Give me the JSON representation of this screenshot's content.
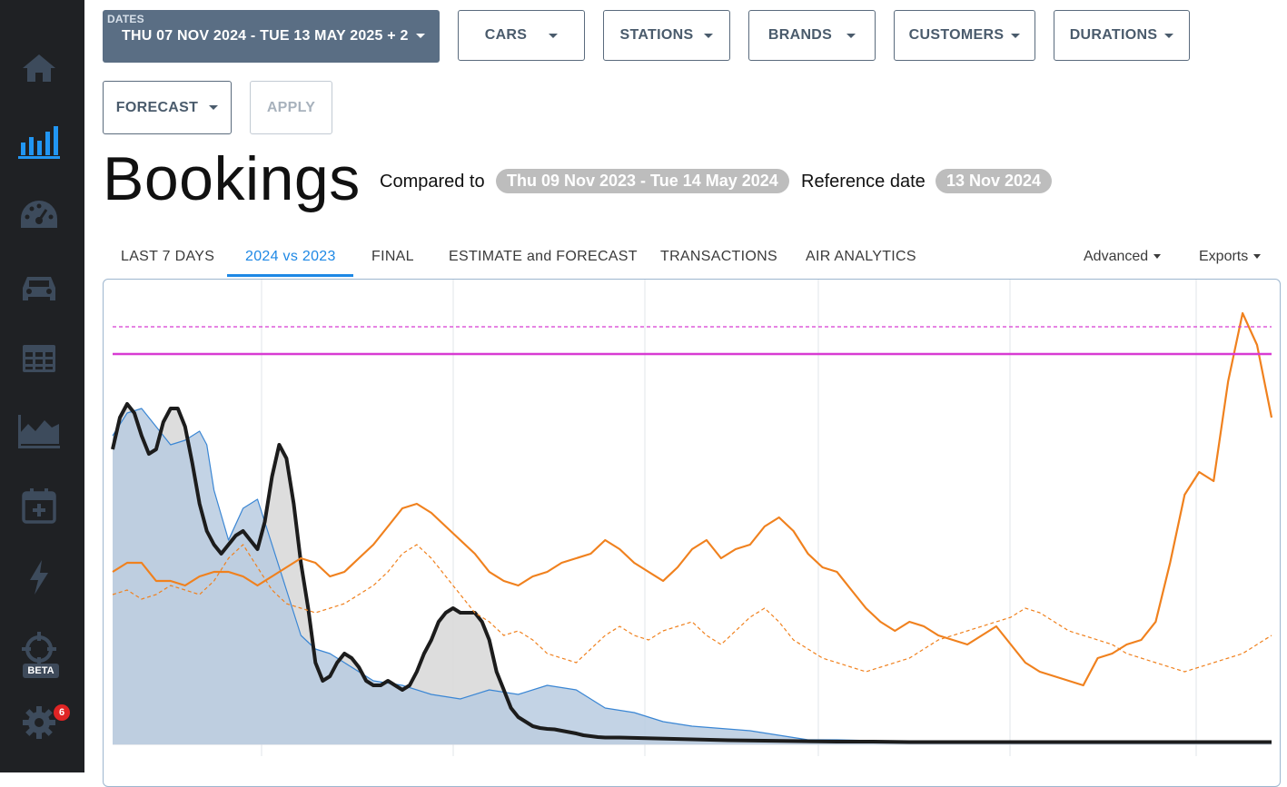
{
  "sidebar": {
    "items": [
      {
        "icon": "home-icon"
      },
      {
        "icon": "bar-chart-icon",
        "active": true
      },
      {
        "icon": "dashboard-gauge-icon"
      },
      {
        "icon": "car-icon"
      },
      {
        "icon": "table-icon"
      },
      {
        "icon": "area-chart-icon"
      },
      {
        "icon": "calendar-plus-icon"
      },
      {
        "icon": "lightning-icon"
      },
      {
        "icon": "crosshair-icon"
      },
      {
        "icon": "gear-icon"
      }
    ],
    "beta_label": "BETA",
    "notification_count": "6",
    "active_color": "#2196f3",
    "icon_color": "#3d4b5c"
  },
  "filters": {
    "dates_label": "DATES",
    "dates_value": "THU 07 NOV 2024 - TUE 13 MAY 2025 + 2",
    "cars": "CARS",
    "stations": "STATIONS",
    "brands": "BRANDS",
    "customers": "CUSTOMERS",
    "durations": "DURATIONS",
    "forecast": "FORECAST",
    "apply": "APPLY"
  },
  "page": {
    "title": "Bookings",
    "compared_to_label": "Compared to",
    "compared_to_value": "Thu 09 Nov 2023 - Tue 14 May 2024",
    "reference_label": "Reference date",
    "reference_value": "13 Nov 2024"
  },
  "tabs": [
    "LAST 7 DAYS",
    "2024 vs 2023",
    "FINAL",
    "ESTIMATE and FORECAST",
    "TRANSACTIONS",
    "AIR ANALYTICS"
  ],
  "active_tab": "2024 vs 2023",
  "menus": {
    "advanced": "Advanced",
    "exports": "Exports"
  },
  "chart_data": {
    "type": "line",
    "ylim": [
      0,
      100
    ],
    "xlim": [
      0,
      160
    ],
    "grid": true,
    "series": [
      {
        "role": "black-area",
        "color": "#1c1c1c",
        "fill": "#d9d9d9",
        "x": [
          0,
          1,
          2,
          3,
          4,
          5,
          6,
          7,
          8,
          9,
          10,
          11,
          12,
          13,
          14,
          15,
          16,
          17,
          18,
          19,
          20,
          21,
          22,
          23,
          24,
          25,
          26,
          27,
          28,
          29,
          30,
          31,
          32,
          33,
          34,
          35,
          36,
          37,
          38,
          39,
          40,
          41,
          42,
          43,
          44,
          45,
          46,
          47,
          48,
          49,
          50,
          51,
          52,
          53,
          54,
          55,
          56,
          57,
          58,
          59,
          60,
          61,
          62,
          63,
          64,
          65,
          66,
          67,
          68,
          69,
          70,
          75,
          80,
          85,
          90,
          95,
          100,
          105,
          110,
          115,
          120,
          125,
          130,
          135,
          140,
          145,
          150,
          155,
          160
        ],
        "y": [
          65,
          72,
          75,
          73,
          68,
          64,
          65,
          71,
          74,
          74,
          70,
          62,
          53,
          47,
          44,
          42,
          44,
          46,
          47,
          45,
          43,
          49,
          59,
          66,
          63,
          53,
          40,
          30,
          18,
          14,
          15,
          18,
          20,
          19,
          17,
          14,
          13,
          13,
          14,
          13,
          12,
          13,
          16,
          20,
          23,
          27,
          29,
          30,
          29,
          29,
          29,
          27,
          23,
          16,
          12,
          8,
          6,
          5,
          4,
          3.6,
          3.4,
          3.3,
          3,
          2.7,
          2.4,
          2,
          1.8,
          1.6,
          1.5,
          1.5,
          1.5,
          1.3,
          1.1,
          0.9,
          0.8,
          0.7,
          0.6,
          0.6,
          0.5,
          0.5,
          0.5,
          0.5,
          0.5,
          0.5,
          0.5,
          0.5,
          0.5,
          0.5,
          0.5
        ]
      },
      {
        "role": "blue-area",
        "color": "#3a86d4",
        "fill": "#b8cbe0",
        "x": [
          0,
          2,
          4,
          6,
          8,
          10,
          12,
          13,
          14,
          16,
          18,
          20,
          22,
          24,
          26,
          28,
          30,
          32,
          34,
          36,
          40,
          44,
          48,
          52,
          56,
          60,
          64,
          68,
          72,
          76,
          80,
          84,
          88,
          92,
          96,
          100,
          105,
          110,
          120,
          130,
          140,
          150,
          160
        ],
        "y": [
          68,
          73,
          74,
          70,
          66,
          67,
          69,
          66,
          56,
          45,
          52,
          54,
          44,
          34,
          24,
          21,
          20,
          18,
          16,
          14,
          13,
          11,
          10,
          12,
          11,
          13,
          12,
          8,
          7,
          5,
          4,
          3.5,
          3,
          2,
          1,
          1,
          0.8,
          0.6,
          0.5,
          0.5,
          0.5,
          0.5,
          0.5
        ]
      },
      {
        "role": "orange-solid",
        "color": "#f0811e",
        "x": [
          0,
          2,
          4,
          6,
          8,
          10,
          12,
          14,
          16,
          18,
          20,
          22,
          24,
          26,
          28,
          30,
          32,
          34,
          36,
          38,
          40,
          42,
          44,
          46,
          48,
          50,
          52,
          54,
          56,
          58,
          60,
          62,
          64,
          66,
          68,
          70,
          72,
          74,
          76,
          78,
          80,
          82,
          84,
          86,
          88,
          90,
          92,
          94,
          96,
          98,
          100,
          102,
          104,
          106,
          108,
          110,
          112,
          114,
          116,
          118,
          120,
          122,
          124,
          126,
          128,
          130,
          132,
          134,
          136,
          138,
          140,
          142,
          144,
          146,
          148,
          150,
          152,
          154,
          156,
          158,
          160
        ],
        "y": [
          38,
          40,
          40,
          36,
          36,
          35,
          37,
          38,
          38,
          37,
          35,
          37,
          39,
          41,
          40,
          37,
          38,
          41,
          44,
          48,
          52,
          53,
          51,
          48,
          45,
          42,
          38,
          36,
          35,
          37,
          38,
          40,
          41,
          42,
          45,
          43,
          40,
          38,
          36,
          39,
          43,
          45,
          41,
          43,
          44,
          48,
          50,
          47,
          42,
          39,
          38,
          34,
          30,
          27,
          25,
          27,
          26,
          24,
          23,
          22,
          24,
          26,
          22,
          18,
          16,
          15,
          14,
          13,
          19,
          20,
          22,
          23,
          27,
          40,
          55,
          60,
          58,
          80,
          95,
          88,
          72
        ]
      },
      {
        "role": "orange-dashed",
        "color": "#f0811e",
        "dashed": true,
        "x": [
          0,
          2,
          4,
          6,
          8,
          10,
          12,
          14,
          16,
          18,
          20,
          22,
          24,
          26,
          28,
          30,
          32,
          34,
          36,
          38,
          40,
          42,
          44,
          46,
          48,
          50,
          52,
          54,
          56,
          58,
          60,
          62,
          64,
          66,
          68,
          70,
          72,
          74,
          76,
          78,
          80,
          82,
          84,
          86,
          88,
          90,
          92,
          94,
          96,
          98,
          100,
          102,
          104,
          106,
          108,
          110,
          112,
          114,
          116,
          118,
          120,
          122,
          124,
          126,
          128,
          130,
          132,
          134,
          136,
          138,
          140,
          142,
          144,
          146,
          148,
          150,
          152,
          154,
          156,
          158,
          160
        ],
        "y": [
          33,
          34,
          32,
          33,
          35,
          34,
          33,
          36,
          41,
          44,
          39,
          34,
          31,
          30,
          29,
          30,
          31,
          33,
          35,
          38,
          42,
          44,
          41,
          37,
          33,
          29,
          27,
          24,
          25,
          23,
          20,
          19,
          18,
          21,
          24,
          26,
          24,
          23,
          25,
          26,
          27,
          24,
          22,
          25,
          28,
          30,
          27,
          23,
          21,
          19,
          18,
          17,
          16,
          17,
          18,
          19,
          21,
          23,
          24,
          25,
          26,
          27,
          28,
          30,
          29,
          27,
          25,
          24,
          23,
          22,
          20,
          19,
          18,
          17,
          16,
          17,
          18,
          19,
          20,
          22,
          24
        ]
      },
      {
        "role": "magenta-solid",
        "color": "#d83bd2",
        "x": [
          0,
          160
        ],
        "y": [
          86,
          86
        ]
      },
      {
        "role": "magenta-dashed",
        "color": "#d83bd2",
        "dashed": true,
        "x": [
          0,
          160
        ],
        "y": [
          92,
          92
        ]
      }
    ]
  }
}
